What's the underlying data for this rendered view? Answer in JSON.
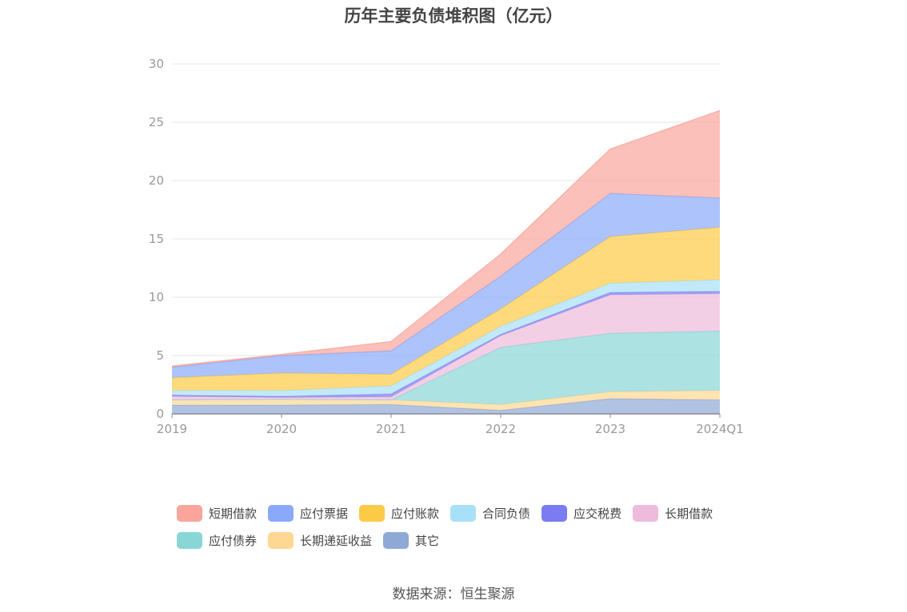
{
  "title": "历年主要负债堆积图（亿元）",
  "source": "数据来源：恒生聚源",
  "chart_data": {
    "type": "area",
    "stacked": true,
    "categories": [
      "2019",
      "2020",
      "2021",
      "2022",
      "2023",
      "2024Q1"
    ],
    "ylim": [
      0,
      30
    ],
    "yticks": [
      0,
      5,
      10,
      15,
      20,
      25,
      30
    ],
    "series": [
      {
        "name": "其它",
        "color": "#8fa9d6",
        "values": [
          0.75,
          0.75,
          0.8,
          0.3,
          1.3,
          1.2
        ]
      },
      {
        "name": "长期递延收益",
        "color": "#fed793",
        "values": [
          0.45,
          0.5,
          0.4,
          0.5,
          0.6,
          0.8
        ]
      },
      {
        "name": "应付债券",
        "color": "#89d6d6",
        "values": [
          0,
          0,
          0,
          4.9,
          5.0,
          5.1
        ]
      },
      {
        "name": "长期借款",
        "color": "#eebbdc",
        "values": [
          0.3,
          0.15,
          0.25,
          1.0,
          3.3,
          3.2
        ]
      },
      {
        "name": "应交税费",
        "color": "#7b7cf1",
        "values": [
          0.1,
          0.1,
          0.25,
          0.1,
          0.2,
          0.2
        ]
      },
      {
        "name": "合同负债",
        "color": "#a8e0f8",
        "values": [
          0.4,
          0.5,
          0.7,
          0.7,
          0.8,
          1.0
        ]
      },
      {
        "name": "应付账款",
        "color": "#fdca45",
        "values": [
          1.1,
          1.5,
          1.0,
          1.5,
          4.0,
          4.5
        ]
      },
      {
        "name": "应付票据",
        "color": "#8aa9fb",
        "values": [
          0.9,
          1.5,
          2.0,
          2.8,
          3.7,
          2.5
        ]
      },
      {
        "name": "短期借款",
        "color": "#f9a59b",
        "values": [
          0.1,
          0.1,
          0.8,
          1.9,
          3.8,
          7.5
        ]
      }
    ],
    "legend_order": [
      "短期借款",
      "应付票据",
      "应付账款",
      "合同负债",
      "应交税费",
      "长期借款",
      "应付债券",
      "长期递延收益",
      "其它"
    ]
  }
}
